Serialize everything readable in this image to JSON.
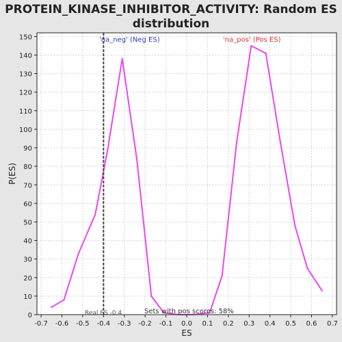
{
  "chart_data": {
    "type": "line",
    "title_lines": [
      "PROTEIN_KINASE_INHIBITOR_ACTIVITY: Random ES",
      "distribution"
    ],
    "xlabel": "ES",
    "ylabel": "P(ES)",
    "xlim": [
      -0.72,
      0.72
    ],
    "ylim": [
      0,
      152
    ],
    "x_ticks": [
      -0.7,
      -0.6,
      -0.5,
      -0.4,
      -0.3,
      -0.2,
      -0.1,
      0.0,
      0.1,
      0.2,
      0.3,
      0.4,
      0.5,
      0.6,
      0.7
    ],
    "x_tick_labels": [
      "-0.7",
      "-0.6",
      "-0.5",
      "-0.4",
      "-0.3",
      "-0.2",
      "-0.1",
      "0.0",
      "0.1",
      "0.2",
      "0.3",
      "0.4",
      "0.5",
      "0.6",
      "0.7"
    ],
    "y_ticks": [
      0,
      10,
      20,
      30,
      40,
      50,
      60,
      70,
      80,
      90,
      100,
      110,
      120,
      130,
      140,
      150
    ],
    "y_tick_labels": [
      "0",
      "10",
      "20",
      "30",
      "40",
      "50",
      "60",
      "70",
      "80",
      "90",
      "100",
      "110",
      "120",
      "130",
      "140",
      "150"
    ],
    "grid": true,
    "series": [
      {
        "color": "#ee44ee",
        "points": [
          [
            -0.65,
            4
          ],
          [
            -0.59,
            8
          ],
          [
            -0.52,
            33
          ],
          [
            -0.44,
            54
          ],
          [
            -0.38,
            89
          ],
          [
            -0.31,
            138
          ],
          [
            -0.24,
            84
          ],
          [
            -0.17,
            10
          ],
          [
            -0.11,
            1
          ],
          [
            -0.04,
            0
          ],
          [
            0.03,
            0
          ],
          [
            0.11,
            1
          ],
          [
            0.17,
            21
          ],
          [
            0.24,
            93
          ],
          [
            0.31,
            145
          ],
          [
            0.38,
            141
          ],
          [
            0.45,
            93
          ],
          [
            0.52,
            48
          ],
          [
            0.58,
            25
          ],
          [
            0.65,
            13
          ]
        ]
      }
    ],
    "real_es": {
      "x": -0.4,
      "label": "Real ES -0.4"
    },
    "annotations": {
      "neg": {
        "text": "'na_neg' (Neg ES)",
        "color": "#3333cc"
      },
      "pos": {
        "text": "'na_pos' (Pos ES)",
        "color": "#dd3333"
      },
      "footer": "Sets with pos scores: 58%"
    }
  }
}
